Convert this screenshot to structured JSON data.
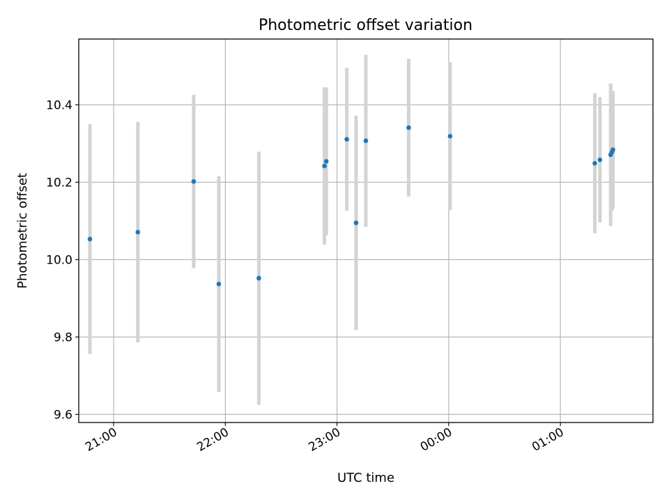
{
  "chart_data": {
    "type": "scatter",
    "title": "Photometric offset variation",
    "xlabel": "UTC time",
    "ylabel": "Photometric offset",
    "x_unit": "UTC time (HH:MM:SS)",
    "xlim": [
      "20:41:15",
      "01:49:45"
    ],
    "ylim": [
      9.579,
      10.57
    ],
    "x_ticks": [
      "21:00",
      "22:00",
      "23:00",
      "00:00",
      "01:00"
    ],
    "y_ticks": [
      9.6,
      9.8,
      10.0,
      10.2,
      10.4
    ],
    "grid": true,
    "colors": {
      "marker": "#1f77b4",
      "errorbar": "#d3d3d3",
      "grid": "#b0b0b0"
    },
    "series": [
      {
        "points": [
          {
            "x": "20:47:15",
            "y": 10.053,
            "yerr": 0.297
          },
          {
            "x": "21:13:00",
            "y": 10.071,
            "yerr": 0.285
          },
          {
            "x": "21:43:00",
            "y": 10.202,
            "yerr": 0.224
          },
          {
            "x": "21:56:30",
            "y": 9.937,
            "yerr": 0.279
          },
          {
            "x": "22:18:00",
            "y": 9.952,
            "yerr": 0.327
          },
          {
            "x": "22:53:15",
            "y": 10.242,
            "yerr": 0.203
          },
          {
            "x": "22:54:15",
            "y": 10.254,
            "yerr": 0.191
          },
          {
            "x": "23:05:15",
            "y": 10.311,
            "yerr": 0.185
          },
          {
            "x": "23:10:15",
            "y": 10.095,
            "yerr": 0.277
          },
          {
            "x": "23:15:30",
            "y": 10.307,
            "yerr": 0.222
          },
          {
            "x": "23:38:30",
            "y": 10.341,
            "yerr": 0.178
          },
          {
            "x": "00:00:45",
            "y": 10.319,
            "yerr": 0.191
          },
          {
            "x": "01:18:30",
            "y": 10.249,
            "yerr": 0.181
          },
          {
            "x": "01:21:15",
            "y": 10.258,
            "yerr": 0.162
          },
          {
            "x": "01:27:00",
            "y": 10.271,
            "yerr": 0.184
          },
          {
            "x": "01:27:45",
            "y": 10.278,
            "yerr": 0.152
          },
          {
            "x": "01:28:15",
            "y": 10.284,
            "yerr": 0.152
          }
        ]
      }
    ]
  }
}
